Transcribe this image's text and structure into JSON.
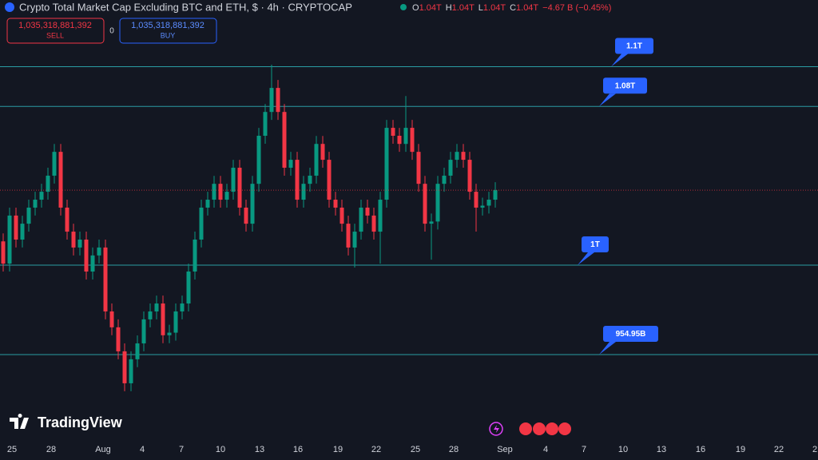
{
  "header": {
    "title": "Crypto Total Market Cap Excluding BTC and ETH, $ · 4h · CRYPTOCAP",
    "ohlc": [
      {
        "key": "O",
        "value": "1.04T"
      },
      {
        "key": "H",
        "value": "1.04T"
      },
      {
        "key": "L",
        "value": "1.04T"
      },
      {
        "key": "C",
        "value": "1.04T"
      }
    ],
    "change": "−4.67 B (−0.45%)"
  },
  "trade": {
    "sell_price": "1,035,318,881,392",
    "sell_label": "SELL",
    "spread": "0",
    "buy_price": "1,035,318,881,392",
    "buy_label": "BUY"
  },
  "logo": "TradingView",
  "chart_data": {
    "type": "candlestick",
    "up_color": "#089981",
    "down_color": "#f23645",
    "ylim": [
      0.9103,
      1.1336
    ],
    "xticks": [
      "25",
      "28",
      "Aug",
      "4",
      "7",
      "10",
      "13",
      "16",
      "19",
      "22",
      "25",
      "28",
      "Sep",
      "4",
      "7",
      "10",
      "13",
      "16",
      "19",
      "22",
      "2"
    ],
    "horizontal_lines": [
      {
        "value": 1.1,
        "label": "1.1T"
      },
      {
        "value": 1.08,
        "label": "1.08T"
      },
      {
        "value": 1.0,
        "label": "1T"
      },
      {
        "value": 0.95495,
        "label": "954.95B"
      }
    ],
    "line_color": "#2a9ca3",
    "open": [
      1.012,
      1.0008,
      1.025,
      1.0129,
      1.0209,
      1.029,
      1.033,
      1.037,
      1.0451,
      1.0571,
      1.029,
      1.0169,
      1.0089,
      1.0129,
      0.9968,
      1.0049,
      1.0089,
      0.9767,
      0.9687,
      0.9566,
      0.9405,
      0.9526,
      0.9606,
      0.9727,
      0.9767,
      0.9807,
      0.9647,
      0.966,
      0.9767,
      0.9807,
      0.9968,
      1.0129,
      1.029,
      1.033,
      1.041,
      1.033,
      1.037,
      1.0491,
      1.029,
      1.0209,
      1.041,
      1.0652,
      1.0772,
      1.0893,
      1.0772,
      1.0491,
      1.0531,
      1.033,
      1.041,
      1.0451,
      1.0611,
      1.0531,
      1.033,
      1.029,
      1.0209,
      1.0089,
      1.0169,
      1.029,
      1.025,
      1.0169,
      1.033,
      1.0692,
      1.0652,
      1.0611,
      1.0692,
      1.0571,
      1.041,
      1.0209,
      1.022,
      1.041,
      1.0451,
      1.0531,
      1.0571,
      1.0531,
      1.037,
      1.029,
      1.03,
      1.033
    ],
    "high": [
      1.016,
      1.029,
      1.029,
      1.0249,
      1.033,
      1.037,
      1.041,
      1.0491,
      1.0611,
      1.0611,
      1.033,
      1.0209,
      1.0169,
      1.0169,
      1.0089,
      1.0129,
      1.0129,
      0.9807,
      0.9727,
      0.9606,
      0.9566,
      0.9646,
      0.9767,
      0.9807,
      0.9847,
      0.9847,
      0.97,
      0.9807,
      0.9847,
      1.0008,
      1.0169,
      1.033,
      1.037,
      1.045,
      1.045,
      1.041,
      1.0531,
      1.0531,
      1.033,
      1.045,
      1.0692,
      1.0812,
      1.101,
      1.0933,
      1.0812,
      1.0571,
      1.0571,
      1.045,
      1.0491,
      1.0651,
      1.0651,
      1.0571,
      1.037,
      1.033,
      1.0249,
      1.0209,
      1.033,
      1.033,
      1.029,
      1.037,
      1.0732,
      1.0732,
      1.0692,
      1.0852,
      1.0732,
      1.0611,
      1.045,
      1.026,
      1.045,
      1.0491,
      1.0571,
      1.0611,
      1.0611,
      1.0571,
      1.041,
      1.034,
      1.037,
      1.0418
    ],
    "low": [
      0.9968,
      0.9968,
      1.0089,
      1.0089,
      1.0169,
      1.025,
      1.029,
      1.033,
      1.0411,
      1.025,
      1.0129,
      1.0049,
      1.0049,
      0.9928,
      0.9928,
      1.0009,
      0.9727,
      0.9647,
      0.9526,
      0.9365,
      0.9365,
      0.9486,
      0.9566,
      0.9687,
      0.9727,
      0.9607,
      0.9607,
      0.962,
      0.9727,
      0.9767,
      0.9928,
      1.0089,
      1.025,
      1.029,
      1.029,
      1.029,
      1.033,
      1.025,
      1.0169,
      1.0169,
      1.037,
      1.0612,
      1.0732,
      1.0732,
      1.0451,
      1.0451,
      1.029,
      1.029,
      1.037,
      1.0411,
      1.0491,
      1.029,
      1.025,
      1.0169,
      1.0049,
      0.9988,
      1.0129,
      1.021,
      1.0129,
      1.0008,
      1.029,
      1.0612,
      1.0571,
      1.0571,
      1.0531,
      1.037,
      1.0169,
      1.0028,
      1.018,
      1.037,
      1.0411,
      1.0491,
      1.0491,
      1.033,
      1.0169,
      1.025,
      1.026,
      1.029
    ],
    "close": [
      1.0008,
      1.025,
      1.0129,
      1.0209,
      1.029,
      1.033,
      1.037,
      1.0451,
      1.0571,
      1.029,
      1.0169,
      1.0089,
      1.0129,
      0.9968,
      1.0049,
      1.0089,
      0.9767,
      0.9687,
      0.9566,
      0.9405,
      0.9526,
      0.9606,
      0.9727,
      0.9767,
      0.9807,
      0.9647,
      0.966,
      0.9767,
      0.9807,
      0.9968,
      1.0129,
      1.029,
      1.033,
      1.041,
      1.033,
      1.037,
      1.0491,
      1.029,
      1.0209,
      1.041,
      1.0652,
      1.0772,
      1.0893,
      1.0772,
      1.0491,
      1.0531,
      1.033,
      1.041,
      1.0451,
      1.0611,
      1.0531,
      1.033,
      1.029,
      1.0209,
      1.0089,
      1.0169,
      1.029,
      1.025,
      1.0169,
      1.033,
      1.0692,
      1.0652,
      1.0611,
      1.0692,
      1.0571,
      1.041,
      1.0209,
      1.022,
      1.041,
      1.0451,
      1.0531,
      1.0571,
      1.0531,
      1.037,
      1.029,
      1.03,
      1.033,
      1.0378
    ]
  }
}
